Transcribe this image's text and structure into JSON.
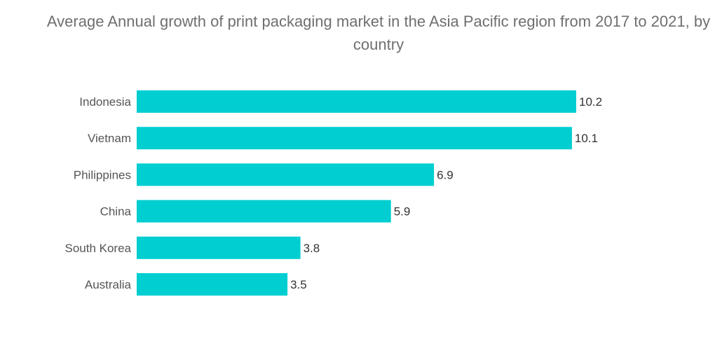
{
  "chart_data": {
    "type": "bar",
    "orientation": "horizontal",
    "title": "Average Annual growth of print packaging market in the Asia Pacific region from 2017 to 2021, by country",
    "categories": [
      "Indonesia",
      "Vietnam",
      "Philippines",
      "China",
      "South Korea",
      "Australia"
    ],
    "values": [
      10.2,
      10.1,
      6.9,
      5.9,
      3.8,
      3.5
    ],
    "value_labels": [
      "10.2",
      "10.1",
      "6.9",
      "5.9",
      "3.8",
      "3.5"
    ],
    "xlabel": "",
    "ylabel": "",
    "xlim": [
      0,
      10.2
    ],
    "grid": false,
    "legend": "none",
    "bar_color": "#00CED1"
  }
}
